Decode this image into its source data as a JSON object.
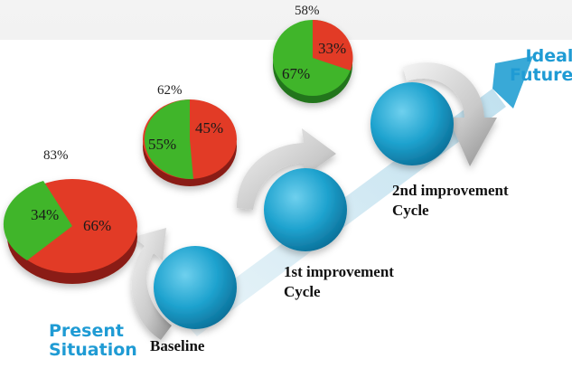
{
  "top_labels": {
    "pie3": "58%",
    "pie2": "62%",
    "pie1": "83%"
  },
  "pies": [
    {
      "green": "34%",
      "red": "66%"
    },
    {
      "green": "55%",
      "red": "45%"
    },
    {
      "green": "67%",
      "red": "33%"
    }
  ],
  "stages": {
    "present": [
      "Present",
      "Situation"
    ],
    "baseline": "Baseline",
    "first": [
      "1st improvement",
      "Cycle"
    ],
    "second": [
      "2nd improvement",
      "Cycle"
    ],
    "ideal": [
      "Ideal",
      "Future"
    ]
  },
  "colors": {
    "green": "#3fb52c",
    "red": "#e23a26",
    "blue": "#1f9bd4"
  }
}
